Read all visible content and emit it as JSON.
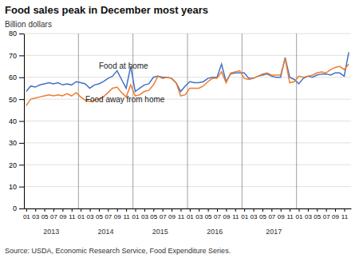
{
  "chart_data": {
    "type": "line",
    "title": "Food sales peak in December most years",
    "y_label": "Billion dollars",
    "source": "Source: USDA, Economic Research Service, Food Expenditure Series.",
    "ylim": [
      0,
      80
    ],
    "yticks": [
      0,
      10,
      20,
      30,
      40,
      50,
      60,
      70,
      80
    ],
    "grid": true,
    "categories": [
      "01",
      null,
      "03",
      null,
      "05",
      null,
      "07",
      null,
      "09",
      null,
      "11",
      null,
      "01",
      null,
      "03",
      null,
      "05",
      null,
      "07",
      null,
      "09",
      null,
      "11",
      null,
      "01",
      null,
      "03",
      null,
      "05",
      null,
      "07",
      null,
      "09",
      null,
      "11",
      null,
      "01",
      null,
      "03",
      null,
      "05",
      null,
      "07",
      null,
      "09",
      null,
      "11",
      null,
      "01",
      null,
      "03",
      null,
      "05",
      null,
      "07",
      null,
      "09",
      null,
      "11",
      null,
      "01",
      null,
      "03",
      null,
      "05",
      null,
      "07",
      null,
      "09",
      null,
      "11",
      null
    ],
    "series": [
      {
        "color": "#4472C4",
        "values": [
          53.5,
          56.0,
          55.5,
          56.5,
          57.0,
          57.5,
          57.0,
          57.5,
          56.5,
          57.0,
          56.5,
          58.0,
          57.5,
          57.0,
          55.0,
          56.5,
          57.0,
          58.0,
          59.5,
          60.5,
          63.0,
          59.0,
          55.0,
          65.0,
          53.5,
          55.0,
          56.5,
          57.0,
          60.0,
          60.5,
          60.0,
          60.0,
          59.5,
          57.5,
          53.5,
          56.0,
          58.0,
          57.5,
          57.5,
          58.0,
          59.5,
          60.0,
          60.0,
          66.0,
          58.0,
          61.5,
          62.0,
          62.0,
          62.0,
          59.5,
          59.5,
          60.5,
          61.0,
          61.5,
          60.5,
          60.0,
          60.0,
          69.0,
          60.0,
          59.0,
          57.0,
          59.5,
          60.5,
          60.0,
          61.0,
          61.5,
          61.5,
          61.0,
          62.0,
          62.0,
          60.5,
          71.5
        ]
      },
      {
        "color": "#ED7D31",
        "values": [
          47.0,
          50.0,
          50.5,
          51.0,
          51.5,
          52.0,
          51.5,
          52.0,
          51.5,
          52.5,
          51.5,
          53.0,
          51.0,
          49.5,
          49.0,
          49.5,
          50.0,
          51.0,
          53.0,
          55.0,
          55.5,
          53.0,
          51.0,
          56.5,
          51.5,
          52.0,
          53.5,
          54.0,
          56.5,
          60.5,
          59.5,
          60.0,
          59.5,
          57.5,
          51.5,
          52.0,
          55.0,
          55.0,
          55.0,
          56.0,
          58.0,
          59.5,
          59.5,
          62.5,
          57.5,
          62.0,
          62.5,
          63.0,
          59.5,
          59.0,
          59.5,
          60.5,
          61.5,
          62.0,
          61.0,
          61.0,
          61.0,
          68.5,
          57.5,
          58.0,
          60.5,
          60.0,
          60.5,
          61.0,
          62.0,
          62.5,
          62.0,
          63.5,
          64.5,
          65.0,
          63.5,
          66.0
        ]
      }
    ],
    "annotations": [
      {
        "text": "Food at home",
        "x": 16,
        "y": 64.0
      },
      {
        "text": "Food away from home",
        "x": 13,
        "y": 48.5
      }
    ],
    "year_labels": [
      {
        "text": "2013",
        "x": 5.5
      },
      {
        "text": "2014",
        "x": 17.5
      },
      {
        "text": "2015",
        "x": 29.5
      },
      {
        "text": "2016",
        "x": 41.5
      },
      {
        "text": "2017",
        "x": 54.5
      }
    ],
    "year_dividers": [
      11.5,
      23.5,
      35.5,
      47.5,
      59.5
    ]
  }
}
